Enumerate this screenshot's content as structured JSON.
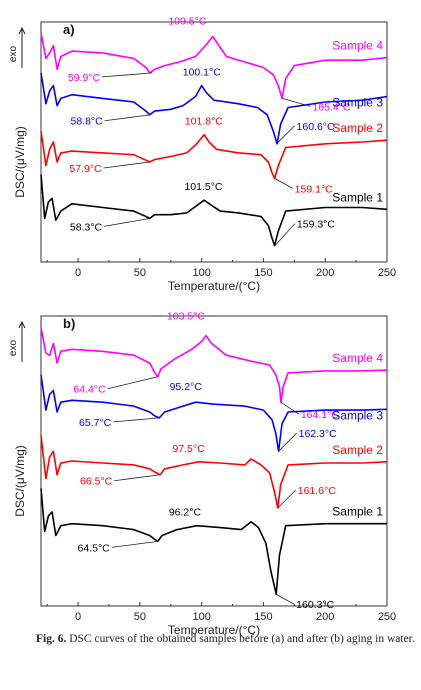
{
  "caption": {
    "label": "Fig. 6.",
    "text": "DSC curves of the obtained samples before (a) and after (b) aging in water."
  },
  "chart_data": [
    {
      "type": "line",
      "panel_label": "a)",
      "xlabel": "Temperature/(°C)",
      "ylabel": "DSC/(μV/mg)",
      "exo_label": "exo",
      "xlim": [
        -30,
        250
      ],
      "x_ticks": [
        "0",
        "50",
        "100",
        "150",
        "200",
        "250"
      ],
      "series": [
        {
          "name": "Sample 4",
          "color": "#ff00ff",
          "points": [
            [
              -30,
              4.1
            ],
            [
              -26,
              3.4
            ],
            [
              -23,
              3.55
            ],
            [
              -20,
              3.75
            ],
            [
              -17,
              3.1
            ],
            [
              -14,
              3.45
            ],
            [
              -5,
              3.6
            ],
            [
              20,
              3.55
            ],
            [
              45,
              3.4
            ],
            [
              55,
              3.15
            ],
            [
              58,
              3.0
            ],
            [
              62,
              3.1
            ],
            [
              70,
              3.2
            ],
            [
              82,
              3.3
            ],
            [
              95,
              3.45
            ],
            [
              103,
              3.75
            ],
            [
              109,
              4.0
            ],
            [
              114,
              3.75
            ],
            [
              120,
              3.45
            ],
            [
              135,
              3.3
            ],
            [
              150,
              3.15
            ],
            [
              158,
              2.95
            ],
            [
              162,
              2.65
            ],
            [
              165,
              2.3
            ],
            [
              168,
              2.85
            ],
            [
              175,
              3.2
            ],
            [
              200,
              3.35
            ],
            [
              230,
              3.35
            ],
            [
              250,
              3.42
            ]
          ],
          "annotations": [
            {
              "text": "109.5°C",
              "x": 109.5,
              "y": 4.0
            },
            {
              "text": "59.9°C",
              "x": 59.9,
              "y": 3.0
            },
            {
              "text": "165.4°C",
              "x": 165.4,
              "y": 2.3
            }
          ]
        },
        {
          "name": "Sample 3",
          "color": "#0000ff",
          "points": [
            [
              -30,
              3.0
            ],
            [
              -26,
              2.15
            ],
            [
              -23,
              2.5
            ],
            [
              -20,
              2.65
            ],
            [
              -17,
              2.1
            ],
            [
              -14,
              2.3
            ],
            [
              -5,
              2.4
            ],
            [
              20,
              2.3
            ],
            [
              45,
              2.2
            ],
            [
              55,
              1.95
            ],
            [
              58,
              1.85
            ],
            [
              62,
              1.95
            ],
            [
              75,
              2.0
            ],
            [
              85,
              2.1
            ],
            [
              95,
              2.35
            ],
            [
              100,
              2.65
            ],
            [
              104,
              2.45
            ],
            [
              110,
              2.25
            ],
            [
              130,
              2.15
            ],
            [
              145,
              2.05
            ],
            [
              153,
              1.85
            ],
            [
              158,
              1.4
            ],
            [
              161,
              1.05
            ],
            [
              164,
              1.6
            ],
            [
              170,
              2.05
            ],
            [
              200,
              2.2
            ],
            [
              230,
              2.25
            ],
            [
              250,
              2.35
            ]
          ],
          "annotations": [
            {
              "text": "100.1°C",
              "x": 100.1,
              "y": 2.65
            },
            {
              "text": "58.8°C",
              "x": 58.8,
              "y": 1.85
            },
            {
              "text": "160.6°C",
              "x": 160.6,
              "y": 1.05
            }
          ]
        },
        {
          "name": "Sample 2",
          "color": "#ff0000",
          "points": [
            [
              -30,
              1.4
            ],
            [
              -26,
              0.45
            ],
            [
              -23,
              0.9
            ],
            [
              -20,
              1.1
            ],
            [
              -17,
              0.55
            ],
            [
              -14,
              0.8
            ],
            [
              -5,
              0.85
            ],
            [
              20,
              0.8
            ],
            [
              45,
              0.75
            ],
            [
              55,
              0.6
            ],
            [
              58,
              0.55
            ],
            [
              62,
              0.62
            ],
            [
              75,
              0.7
            ],
            [
              88,
              0.8
            ],
            [
              96,
              1.05
            ],
            [
              102,
              1.3
            ],
            [
              106,
              1.1
            ],
            [
              112,
              0.9
            ],
            [
              130,
              0.8
            ],
            [
              148,
              0.75
            ],
            [
              154,
              0.55
            ],
            [
              157,
              0.25
            ],
            [
              159,
              0.1
            ],
            [
              162,
              0.45
            ],
            [
              168,
              0.95
            ],
            [
              200,
              1.05
            ],
            [
              230,
              1.1
            ],
            [
              250,
              1.15
            ]
          ],
          "annotations": [
            {
              "text": "101.8°C",
              "x": 101.8,
              "y": 1.3
            },
            {
              "text": "57.9°C",
              "x": 57.9,
              "y": 0.55
            },
            {
              "text": "159.1°C",
              "x": 159.1,
              "y": 0.1
            }
          ]
        },
        {
          "name": "Sample 1",
          "color": "#000000",
          "points": [
            [
              -30,
              0.2
            ],
            [
              -27,
              -1.0
            ],
            [
              -24,
              -0.55
            ],
            [
              -21,
              -0.45
            ],
            [
              -18,
              -1.05
            ],
            [
              -14,
              -0.8
            ],
            [
              -5,
              -0.6
            ],
            [
              20,
              -0.7
            ],
            [
              45,
              -0.8
            ],
            [
              55,
              -0.95
            ],
            [
              58,
              -1.0
            ],
            [
              62,
              -0.9
            ],
            [
              75,
              -0.9
            ],
            [
              88,
              -0.85
            ],
            [
              96,
              -0.65
            ],
            [
              102,
              -0.5
            ],
            [
              107,
              -0.62
            ],
            [
              115,
              -0.8
            ],
            [
              130,
              -0.85
            ],
            [
              148,
              -0.95
            ],
            [
              154,
              -1.2
            ],
            [
              157,
              -1.55
            ],
            [
              159,
              -1.75
            ],
            [
              162,
              -1.35
            ],
            [
              168,
              -0.8
            ],
            [
              200,
              -0.7
            ],
            [
              230,
              -0.7
            ],
            [
              250,
              -0.75
            ]
          ],
          "annotations": [
            {
              "text": "101.5°C",
              "x": 101.5,
              "y": -0.5
            },
            {
              "text": "58.3°C",
              "x": 58.3,
              "y": -1.0
            },
            {
              "text": "159.3°C",
              "x": 159.3,
              "y": -1.75
            }
          ]
        }
      ]
    },
    {
      "type": "line",
      "panel_label": "b)",
      "xlabel": "Temperature/(°C)",
      "ylabel": "DSC/(μV/mg)",
      "exo_label": "exo",
      "xlim": [
        -30,
        250
      ],
      "x_ticks": [
        "0",
        "50",
        "100",
        "150",
        "200",
        "250"
      ],
      "series": [
        {
          "name": "Sample 4",
          "color": "#ff00ff",
          "points": [
            [
              -30,
              4.2
            ],
            [
              -26,
              3.55
            ],
            [
              -23,
              3.5
            ],
            [
              -20,
              3.8
            ],
            [
              -17,
              3.3
            ],
            [
              -14,
              3.6
            ],
            [
              -5,
              3.65
            ],
            [
              20,
              3.6
            ],
            [
              45,
              3.5
            ],
            [
              58,
              3.3
            ],
            [
              62,
              3.05
            ],
            [
              64.4,
              2.95
            ],
            [
              67,
              3.15
            ],
            [
              78,
              3.4
            ],
            [
              92,
              3.65
            ],
            [
              100,
              3.85
            ],
            [
              103.5,
              4.0
            ],
            [
              108,
              3.8
            ],
            [
              120,
              3.5
            ],
            [
              140,
              3.35
            ],
            [
              155,
              3.25
            ],
            [
              160,
              3.0
            ],
            [
              163,
              2.7
            ],
            [
              164.1,
              2.3
            ],
            [
              166,
              2.7
            ],
            [
              170,
              3.05
            ],
            [
              200,
              3.1
            ],
            [
              230,
              3.1
            ],
            [
              250,
              3.12
            ]
          ],
          "annotations": [
            {
              "text": "103.5°C",
              "x": 103.5,
              "y": 4.0
            },
            {
              "text": "64.4°C",
              "x": 64.4,
              "y": 2.95
            },
            {
              "text": "164.1°C",
              "x": 164.1,
              "y": 2.3
            }
          ]
        },
        {
          "name": "Sample 3",
          "color": "#0000ff",
          "points": [
            [
              -30,
              3.0
            ],
            [
              -26,
              2.1
            ],
            [
              -23,
              2.5
            ],
            [
              -20,
              2.6
            ],
            [
              -17,
              2.05
            ],
            [
              -14,
              2.3
            ],
            [
              -5,
              2.35
            ],
            [
              20,
              2.3
            ],
            [
              45,
              2.2
            ],
            [
              58,
              2.05
            ],
            [
              62,
              1.95
            ],
            [
              65.7,
              1.9
            ],
            [
              70,
              2.05
            ],
            [
              85,
              2.2
            ],
            [
              95.2,
              2.3
            ],
            [
              110,
              2.25
            ],
            [
              135,
              2.2
            ],
            [
              150,
              2.1
            ],
            [
              157,
              1.85
            ],
            [
              160,
              1.5
            ],
            [
              162.3,
              1.05
            ],
            [
              165,
              1.75
            ],
            [
              170,
              2.05
            ],
            [
              200,
              2.1
            ],
            [
              230,
              2.1
            ],
            [
              250,
              2.12
            ]
          ],
          "annotations": [
            {
              "text": "95.2°C",
              "x": 95.2,
              "y": 2.3
            },
            {
              "text": "65.7°C",
              "x": 65.7,
              "y": 1.9
            },
            {
              "text": "162.3°C",
              "x": 162.3,
              "y": 1.05
            }
          ]
        },
        {
          "name": "Sample 2",
          "color": "#ff0000",
          "points": [
            [
              -30,
              1.45
            ],
            [
              -26,
              0.35
            ],
            [
              -23,
              0.9
            ],
            [
              -20,
              1.05
            ],
            [
              -17,
              0.45
            ],
            [
              -14,
              0.75
            ],
            [
              -5,
              0.8
            ],
            [
              20,
              0.75
            ],
            [
              45,
              0.7
            ],
            [
              58,
              0.6
            ],
            [
              62,
              0.52
            ],
            [
              66.5,
              0.45
            ],
            [
              70,
              0.6
            ],
            [
              85,
              0.7
            ],
            [
              97.5,
              0.78
            ],
            [
              115,
              0.75
            ],
            [
              135,
              0.7
            ],
            [
              140,
              0.85
            ],
            [
              148,
              0.7
            ],
            [
              155,
              0.5
            ],
            [
              159,
              0.0
            ],
            [
              161.6,
              -0.4
            ],
            [
              164,
              0.2
            ],
            [
              170,
              0.7
            ],
            [
              200,
              0.75
            ],
            [
              230,
              0.75
            ],
            [
              250,
              0.78
            ]
          ],
          "annotations": [
            {
              "text": "97.5°C",
              "x": 97.5,
              "y": 0.78
            },
            {
              "text": "66.5°C",
              "x": 66.5,
              "y": 0.45
            },
            {
              "text": "161.6°C",
              "x": 161.6,
              "y": -0.4
            }
          ]
        },
        {
          "name": "Sample 1",
          "color": "#000000",
          "points": [
            [
              -30,
              0.1
            ],
            [
              -27,
              -1.0
            ],
            [
              -24,
              -0.6
            ],
            [
              -21,
              -0.5
            ],
            [
              -18,
              -1.1
            ],
            [
              -14,
              -0.85
            ],
            [
              -5,
              -0.8
            ],
            [
              20,
              -0.85
            ],
            [
              45,
              -0.95
            ],
            [
              58,
              -1.1
            ],
            [
              62,
              -1.2
            ],
            [
              64.5,
              -1.25
            ],
            [
              68,
              -1.1
            ],
            [
              80,
              -0.95
            ],
            [
              96.2,
              -0.85
            ],
            [
              115,
              -0.9
            ],
            [
              132,
              -0.95
            ],
            [
              140,
              -0.75
            ],
            [
              146,
              -0.9
            ],
            [
              152,
              -1.3
            ],
            [
              156,
              -2.0
            ],
            [
              160.3,
              -2.6
            ],
            [
              163,
              -1.6
            ],
            [
              168,
              -0.85
            ],
            [
              200,
              -0.8
            ],
            [
              230,
              -0.8
            ],
            [
              250,
              -0.8
            ]
          ],
          "annotations": [
            {
              "text": "96.2°C",
              "x": 96.2,
              "y": -0.85
            },
            {
              "text": "64.5°C",
              "x": 64.5,
              "y": -1.25
            },
            {
              "text": "160.3°C",
              "x": 160.3,
              "y": -2.6
            }
          ]
        }
      ]
    }
  ]
}
